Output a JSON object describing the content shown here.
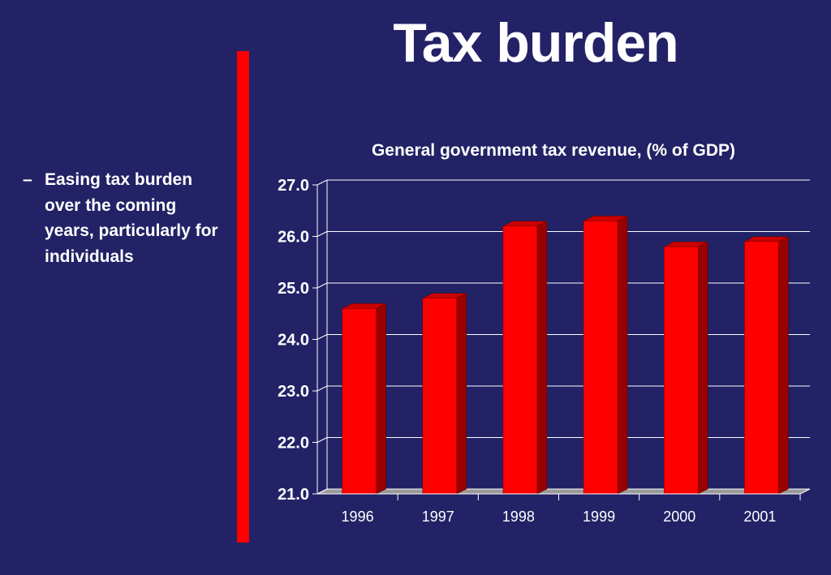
{
  "slide_title": "Tax burden",
  "bullet": {
    "marker": "–",
    "text": "Easing tax burden over the coming years, particularly for individuals"
  },
  "colors": {
    "background": "#232266",
    "divider": "#ff0000",
    "bar_front": "#ff0000",
    "bar_side": "#990000",
    "bar_top": "#cc0000",
    "text": "#ffffff"
  },
  "chart_data": {
    "type": "bar",
    "title": "General government tax revenue, (% of GDP)",
    "categories": [
      "1996",
      "1997",
      "1998",
      "1999",
      "2000",
      "2001"
    ],
    "values": [
      24.6,
      24.8,
      26.2,
      26.3,
      25.8,
      25.9
    ],
    "ylim": [
      21.0,
      27.0
    ],
    "yticks": [
      "21.0",
      "22.0",
      "23.0",
      "24.0",
      "25.0",
      "26.0",
      "27.0"
    ],
    "xlabel": "",
    "ylabel": "",
    "grid": true,
    "legend": "none",
    "style": "3d-column"
  }
}
